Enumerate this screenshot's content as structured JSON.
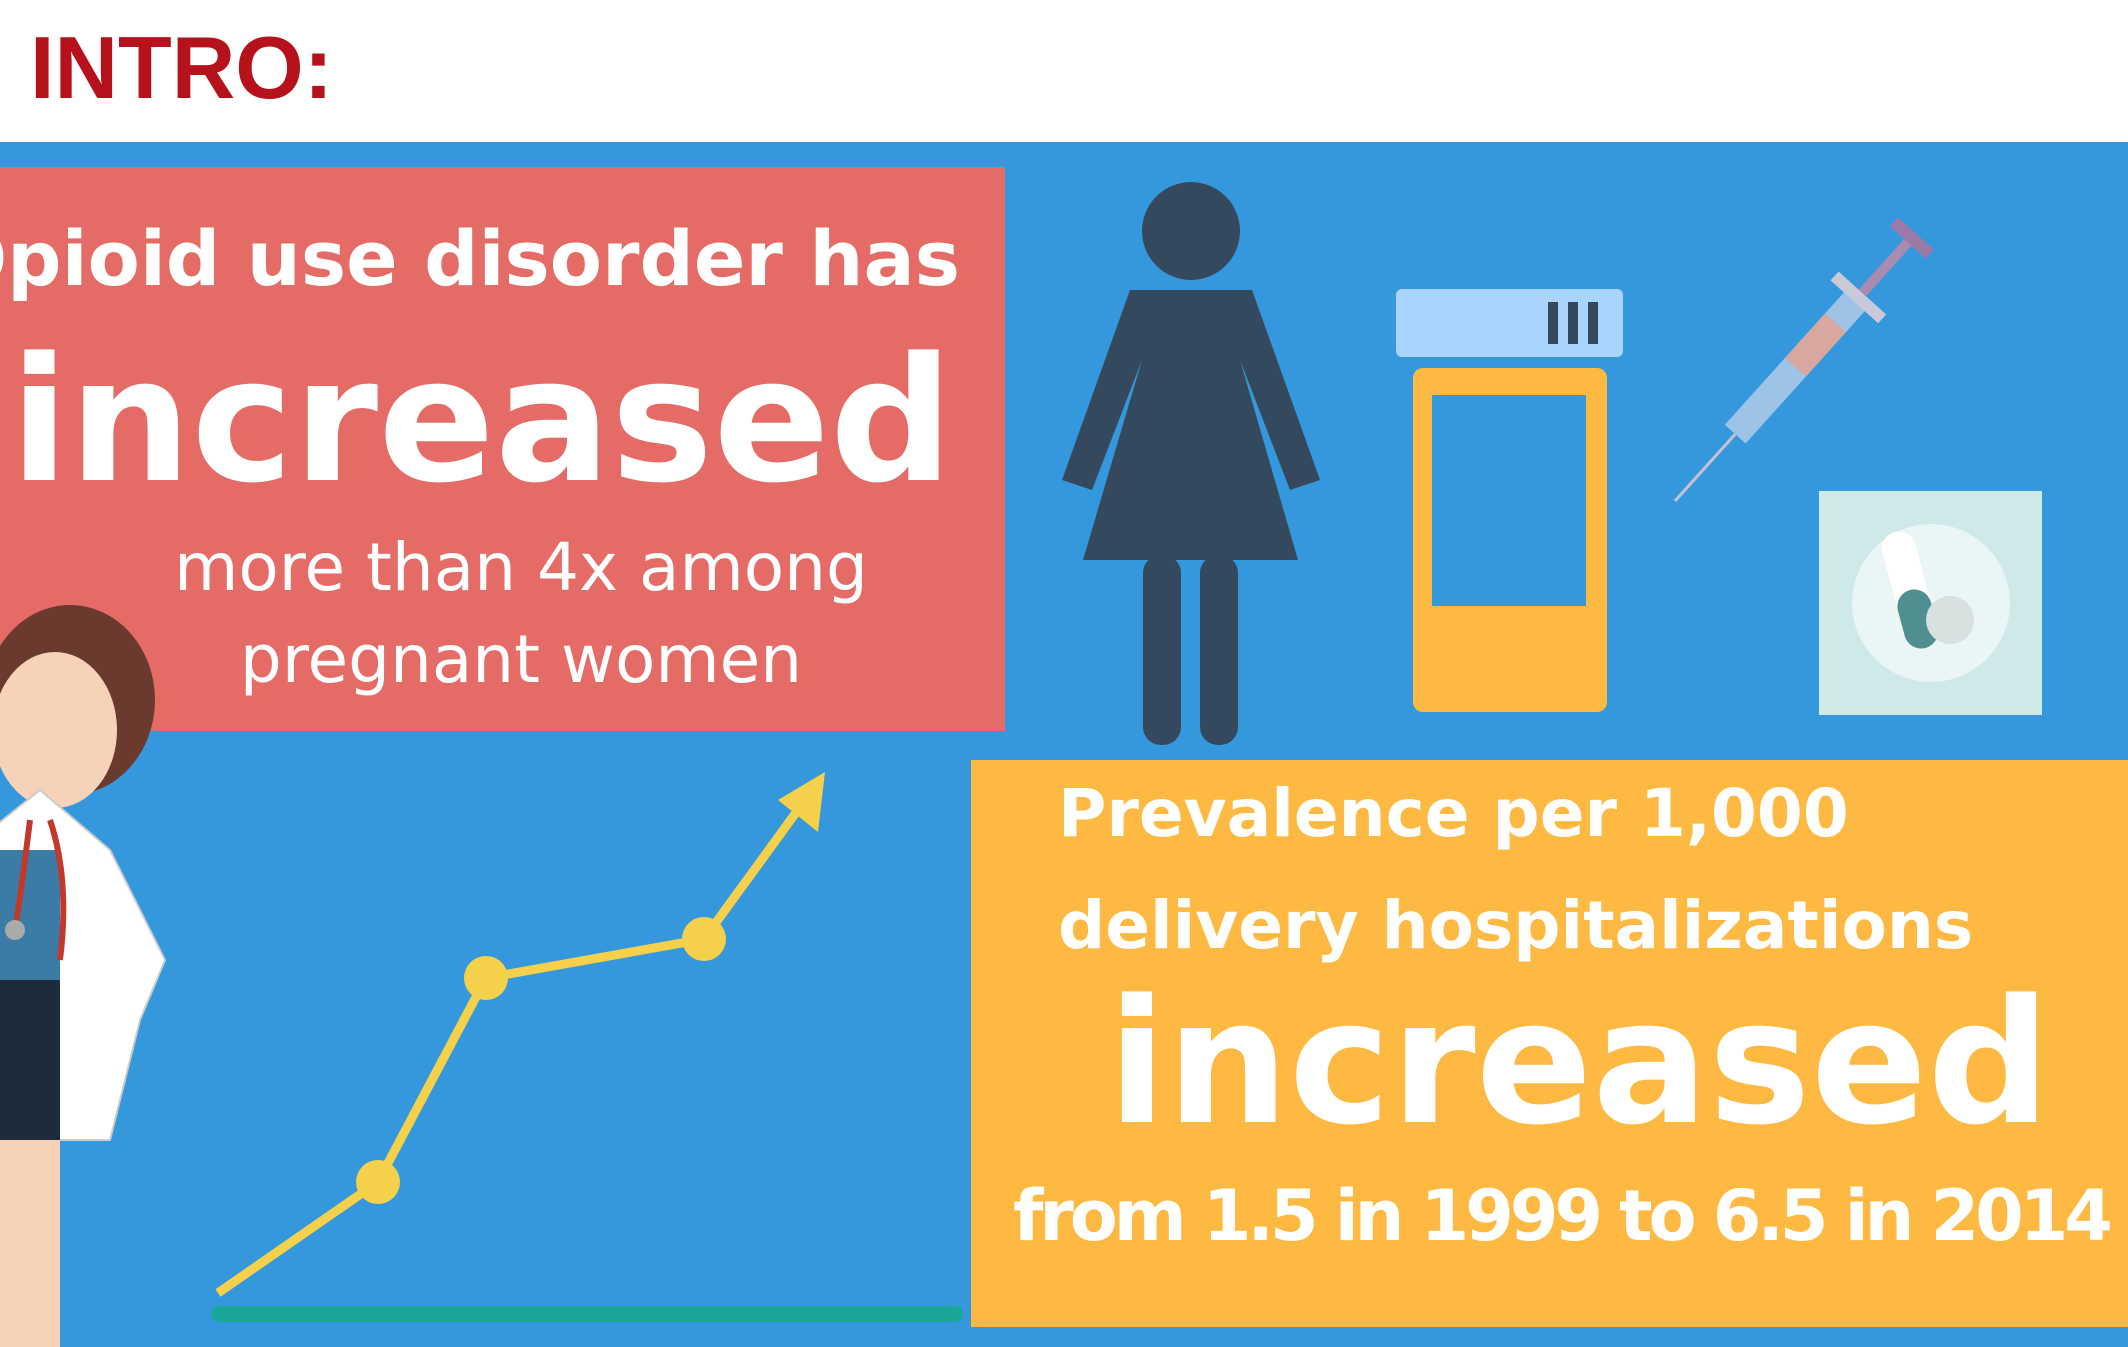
{
  "header": {
    "title": "INTRO:"
  },
  "red_panel": {
    "lines": [
      "Opioid use disorder has",
      "increased",
      "more than 4x among",
      "pregnant women"
    ]
  },
  "yellow_panel": {
    "lines": [
      "Prevalence per 1,000",
      "delivery hospitalizations",
      "increased",
      "from 1.5 in 1999 to 6.5 in 2014"
    ]
  }
}
